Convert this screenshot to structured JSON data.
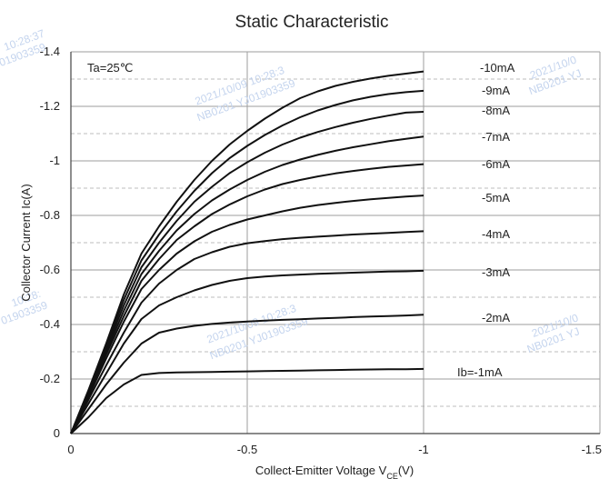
{
  "chart_data": {
    "type": "line",
    "title": "Static Characteristic",
    "xlabel_main": "Collect-Emitter Voltage  V",
    "xlabel_sub": "CE",
    "xlabel_unit": "(V)",
    "ylabel": "Collector  Current  Ic(A)",
    "annotation": "Ta=25℃",
    "xlim": [
      0,
      -1.5
    ],
    "ylim": [
      0,
      -1.4
    ],
    "x_ticks": [
      "0",
      "-0.5",
      "-1",
      "-1.5"
    ],
    "y_ticks": [
      "0",
      "-0.2",
      "-0.4",
      "-0.6",
      "-0.8",
      "-1",
      "-1.2",
      "-1.4"
    ],
    "grid": {
      "major_solid": true,
      "minor_dashed": true
    },
    "x": [
      0,
      -0.05,
      -0.1,
      -0.15,
      -0.2,
      -0.25,
      -0.3,
      -0.35,
      -0.4,
      -0.45,
      -0.5,
      -0.55,
      -0.6,
      -0.65,
      -0.7,
      -0.75,
      -0.8,
      -0.85,
      -0.9,
      -0.95,
      -1.0
    ],
    "series": [
      {
        "name": "Ib=-1mA",
        "values": [
          0,
          -0.06,
          -0.13,
          -0.18,
          -0.215,
          -0.222,
          -0.224,
          -0.225,
          -0.226,
          -0.227,
          -0.228,
          -0.229,
          -0.23,
          -0.231,
          -0.232,
          -0.233,
          -0.234,
          -0.235,
          -0.236,
          -0.236,
          -0.237
        ]
      },
      {
        "name": "-2mA",
        "values": [
          0,
          -0.09,
          -0.18,
          -0.26,
          -0.33,
          -0.37,
          -0.385,
          -0.395,
          -0.402,
          -0.407,
          -0.411,
          -0.414,
          -0.417,
          -0.419,
          -0.422,
          -0.424,
          -0.427,
          -0.429,
          -0.431,
          -0.433,
          -0.436
        ]
      },
      {
        "name": "-3mA",
        "values": [
          0,
          -0.11,
          -0.22,
          -0.33,
          -0.42,
          -0.47,
          -0.5,
          -0.525,
          -0.545,
          -0.56,
          -0.57,
          -0.576,
          -0.58,
          -0.583,
          -0.586,
          -0.588,
          -0.59,
          -0.592,
          -0.594,
          -0.595,
          -0.597
        ]
      },
      {
        "name": "-4mA",
        "values": [
          0,
          -0.125,
          -0.25,
          -0.37,
          -0.48,
          -0.55,
          -0.6,
          -0.64,
          -0.665,
          -0.685,
          -0.698,
          -0.706,
          -0.713,
          -0.718,
          -0.722,
          -0.726,
          -0.73,
          -0.733,
          -0.736,
          -0.739,
          -0.742
        ]
      },
      {
        "name": "-5mA",
        "values": [
          0,
          -0.135,
          -0.275,
          -0.41,
          -0.53,
          -0.6,
          -0.66,
          -0.705,
          -0.74,
          -0.765,
          -0.785,
          -0.8,
          -0.815,
          -0.828,
          -0.838,
          -0.846,
          -0.853,
          -0.859,
          -0.864,
          -0.869,
          -0.873
        ]
      },
      {
        "name": "-6mA",
        "values": [
          0,
          -0.14,
          -0.29,
          -0.43,
          -0.56,
          -0.64,
          -0.71,
          -0.76,
          -0.805,
          -0.84,
          -0.87,
          -0.895,
          -0.915,
          -0.93,
          -0.943,
          -0.954,
          -0.963,
          -0.971,
          -0.978,
          -0.983,
          -0.988
        ]
      },
      {
        "name": "-7mA",
        "values": [
          0,
          -0.145,
          -0.3,
          -0.45,
          -0.585,
          -0.67,
          -0.745,
          -0.805,
          -0.855,
          -0.895,
          -0.93,
          -0.96,
          -0.985,
          -1.005,
          -1.022,
          -1.037,
          -1.05,
          -1.061,
          -1.072,
          -1.081,
          -1.089
        ]
      },
      {
        "name": "-8mA",
        "values": [
          0,
          -0.15,
          -0.31,
          -0.47,
          -0.61,
          -0.7,
          -0.78,
          -0.85,
          -0.905,
          -0.955,
          -0.995,
          -1.03,
          -1.06,
          -1.085,
          -1.106,
          -1.124,
          -1.14,
          -1.154,
          -1.166,
          -1.177,
          -1.18
        ]
      },
      {
        "name": "-9mA",
        "values": [
          0,
          -0.155,
          -0.32,
          -0.49,
          -0.635,
          -0.73,
          -0.815,
          -0.89,
          -0.955,
          -1.01,
          -1.055,
          -1.095,
          -1.13,
          -1.16,
          -1.185,
          -1.205,
          -1.222,
          -1.235,
          -1.245,
          -1.252,
          -1.257
        ]
      },
      {
        "name": "-10mA",
        "values": [
          0,
          -0.16,
          -0.33,
          -0.51,
          -0.66,
          -0.76,
          -0.85,
          -0.93,
          -1.0,
          -1.06,
          -1.11,
          -1.155,
          -1.195,
          -1.23,
          -1.255,
          -1.275,
          -1.29,
          -1.302,
          -1.312,
          -1.32,
          -1.328
        ]
      }
    ],
    "watermarks": [
      "10:28:37",
      "01903359",
      "2021/10/09  10:28:3",
      "NB0201 YJ01903359",
      "2021/10/0",
      "NB0201 YJ",
      "10:28:",
      "01903359",
      "2021/10/09  10:28:3",
      "NB0201 YJ01903359",
      "2021/10/0",
      "NB0201 YJ"
    ]
  }
}
